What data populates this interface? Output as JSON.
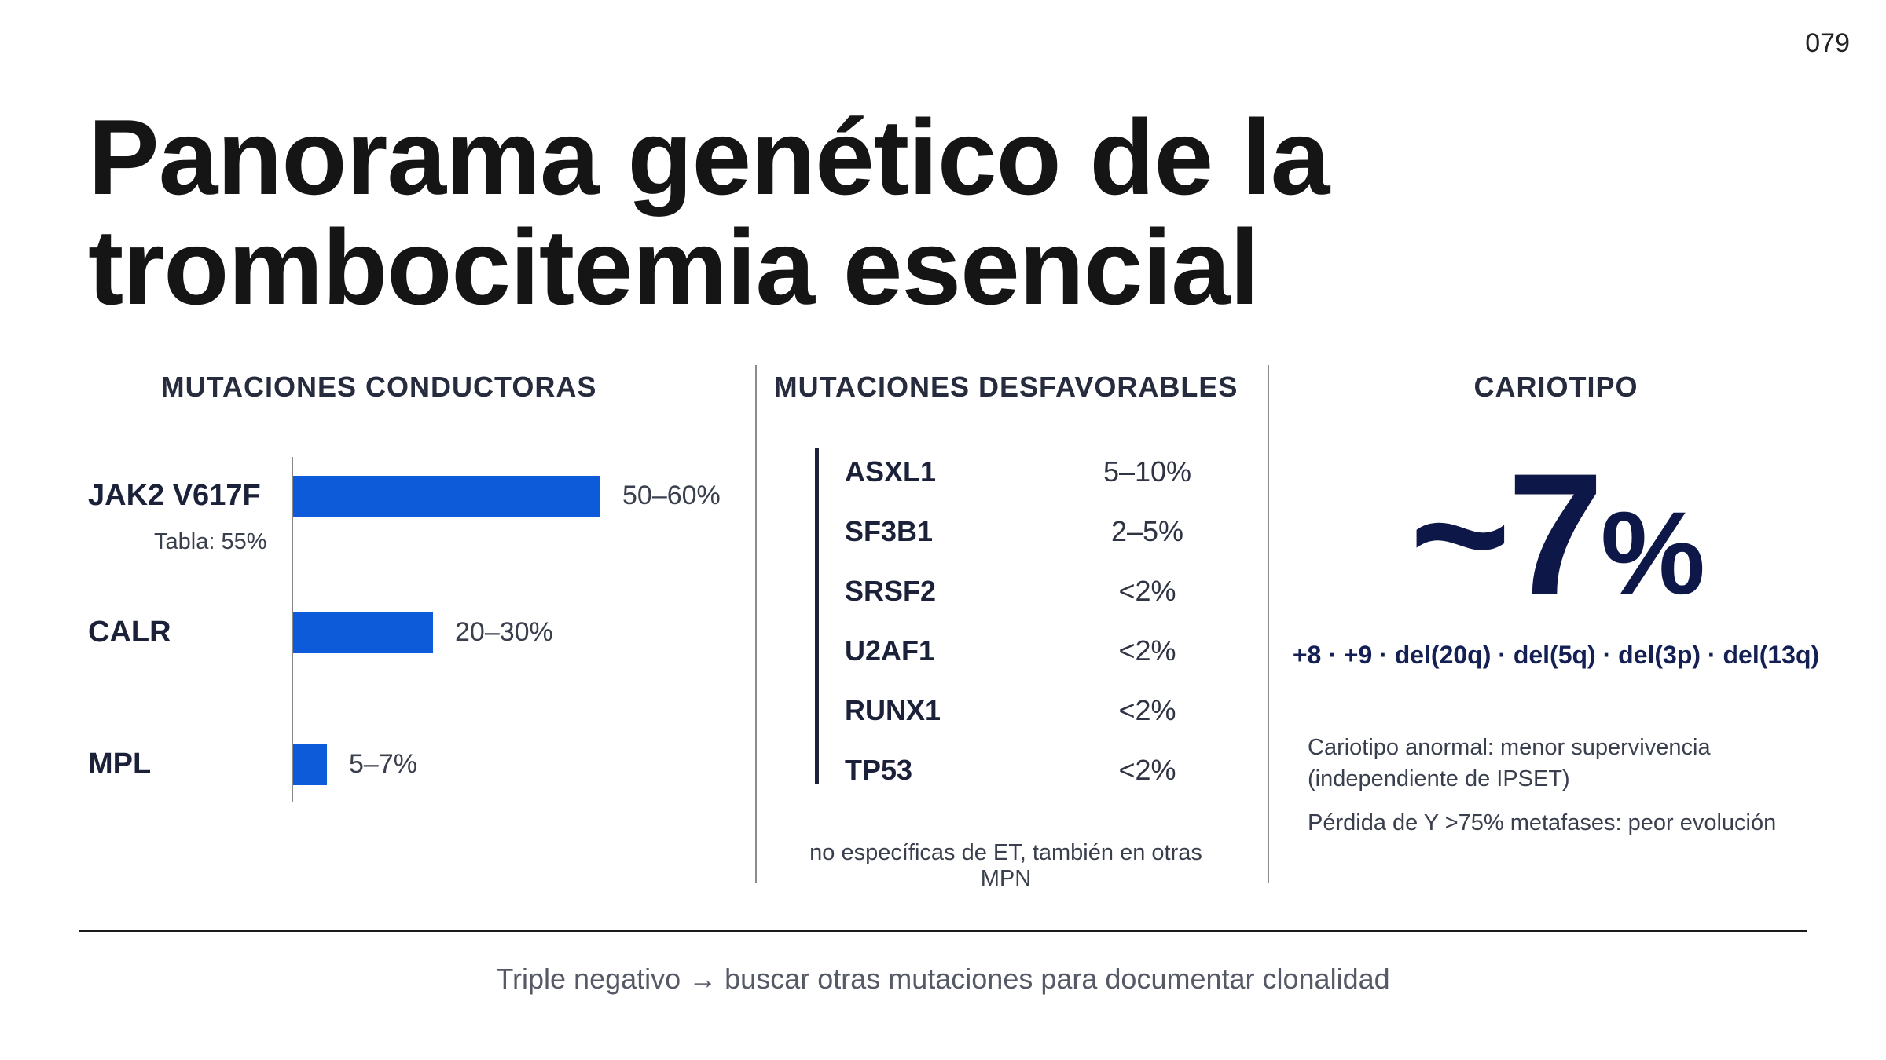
{
  "page_number": "079",
  "title_line1": "Panorama genético de la",
  "title_line2": "trombocitemia esencial",
  "columns": {
    "driver": {
      "heading": "MUTACIONES CONDUCTORAS",
      "bars": [
        {
          "label": "JAK2 V617F",
          "sublabel": "Tabla: 55%",
          "value_label": "50–60%",
          "low": 50,
          "high": 60
        },
        {
          "label": "CALR",
          "value_label": "20–30%",
          "low": 20,
          "high": 30
        },
        {
          "label": "MPL",
          "value_label": "5–7%",
          "low": 5,
          "high": 7
        }
      ],
      "bar_color": "#0d5bd8"
    },
    "unfavorable": {
      "heading": "MUTACIONES DESFAVORABLES",
      "rows": [
        {
          "gene": "ASXL1",
          "pct": "5–10%"
        },
        {
          "gene": "SF3B1",
          "pct": "2–5%"
        },
        {
          "gene": "SRSF2",
          "pct": "<2%"
        },
        {
          "gene": "U2AF1",
          "pct": "<2%"
        },
        {
          "gene": "RUNX1",
          "pct": "<2%"
        },
        {
          "gene": "TP53",
          "pct": "<2%"
        }
      ],
      "footnote": "no específicas de ET, también en otras MPN"
    },
    "karyotype": {
      "heading": "CARIOTIPO",
      "big_value": "~7",
      "big_unit": "%",
      "abnormalities": "+8 · +9 · del(20q) · del(5q) · del(3p) · del(13q)",
      "note1_line1": "Cariotipo anormal: menor supervivencia",
      "note1_line2": "(independiente de IPSET)",
      "note2": "Pérdida de Y >75% metafases: peor evolución"
    }
  },
  "bottom_note": "Triple negativo → buscar otras mutaciones para documentar clonalidad",
  "colors": {
    "accent": "#0d5bd8",
    "navy": "#0d1848"
  }
}
